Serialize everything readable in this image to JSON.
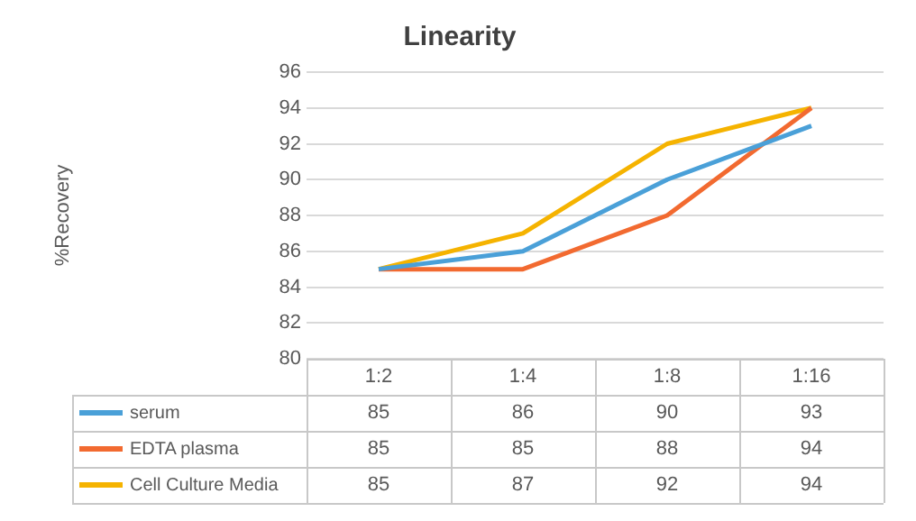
{
  "chart_data": {
    "type": "line",
    "title": "Linearity",
    "annotations": [
      "%Recovery"
    ],
    "categories": [
      "1:2",
      "1:4",
      "1:8",
      "1:16"
    ],
    "series": [
      {
        "name": "serum",
        "color": "#4aa0d8",
        "values": [
          85,
          86,
          90,
          93
        ]
      },
      {
        "name": "EDTA plasma",
        "color": "#f26a30",
        "values": [
          85,
          85,
          88,
          94
        ]
      },
      {
        "name": "Cell Culture Media",
        "color": "#f5b300",
        "values": [
          85,
          87,
          92,
          94
        ]
      }
    ],
    "ylim": [
      80,
      96
    ],
    "yticks": [
      80,
      82,
      84,
      86,
      88,
      90,
      92,
      94,
      96
    ],
    "grid": "y",
    "legend": "bottom",
    "data_labels": true,
    "marker": "none",
    "line_style": "solid"
  }
}
